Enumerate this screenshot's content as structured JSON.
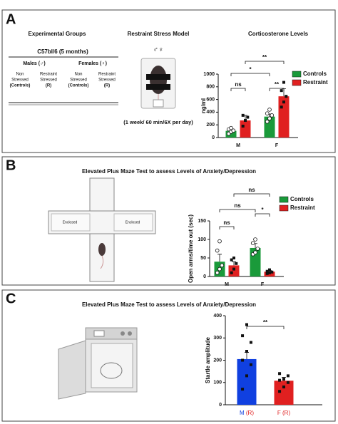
{
  "panels": [
    {
      "label": "A",
      "groups_table": {
        "title": "Experimental Groups",
        "strain": "C57bl/6 (5 months)",
        "sexes": [
          "Males (♂)",
          "Females (♀)"
        ],
        "columns": [
          [
            "Non",
            "Stressed",
            "(Controls)"
          ],
          [
            "Restraint",
            "Stressed",
            "(R)"
          ],
          [
            "Non",
            "Stressed",
            "(Controls)"
          ],
          [
            "Restraint",
            "Stressed",
            "(R)"
          ]
        ]
      },
      "model": {
        "title": "Restraint Stress Model",
        "symbols": "♂♀",
        "schedule": "(1 week/ 60 min/6X per day)"
      }
    },
    {
      "label": "B",
      "title": "Elevated Plus Maze Test to assess Levels of Anxiety/Depression",
      "maze_labels": [
        "Enclosed",
        "Enclosed"
      ]
    },
    {
      "label": "C",
      "title": "Elevated Plus Maze Test to assess Levels of Anxiety/Depression"
    }
  ],
  "chart_data": [
    {
      "type": "bar",
      "title": "Corticosterone Levels",
      "y_label": "ng/ml",
      "categories": [
        "M",
        "F"
      ],
      "ylim": [
        0,
        1000
      ],
      "yticks": [
        0,
        200,
        400,
        600,
        800,
        1000
      ],
      "series": [
        {
          "name": "Controls",
          "color": "#1a9a3a",
          "marker": "circle-open",
          "values": [
            105,
            330
          ],
          "errors": [
            20,
            40
          ],
          "points": [
            [
              60,
              90,
              110,
              130,
              150
            ],
            [
              250,
              300,
              350,
              380,
              440
            ]
          ]
        },
        {
          "name": "Restraint",
          "color": "#e02020",
          "marker": "square",
          "values": [
            270,
            650
          ],
          "errors": [
            80,
            120
          ],
          "points": [
            [
              180,
              270,
              320,
              350
            ],
            [
              480,
              560,
              650,
              740,
              870
            ]
          ]
        }
      ],
      "annotations": [
        "ns",
        "**",
        "*",
        "**"
      ]
    },
    {
      "type": "bar",
      "y_label": "Open arms/time out (sec)",
      "categories": [
        "M",
        "F"
      ],
      "ylim": [
        0,
        150
      ],
      "yticks": [
        0,
        50,
        100,
        150
      ],
      "series": [
        {
          "name": "Controls",
          "color": "#1a9a3a",
          "marker": "circle-open",
          "values": [
            40,
            77
          ],
          "errors": [
            20,
            12
          ],
          "points": [
            [
              10,
              20,
              30,
              70,
              95
            ],
            [
              60,
              65,
              75,
              90,
              100
            ]
          ]
        },
        {
          "name": "Restraint",
          "color": "#e02020",
          "marker": "square",
          "values": [
            30,
            13
          ],
          "errors": [
            10,
            3
          ],
          "points": [
            [
              10,
              20,
              35,
              45,
              50
            ],
            [
              8,
              10,
              12,
              14,
              18
            ]
          ]
        }
      ],
      "annotations": [
        "ns",
        "*",
        "ns",
        "ns"
      ]
    },
    {
      "type": "bar",
      "y_label": "Startle amplitude",
      "categories": [
        {
          "sex": "M",
          "group": "(R)"
        },
        {
          "sex": "F",
          "group": "(R)"
        }
      ],
      "sex_colors": [
        "#1040e0",
        "#e02020"
      ],
      "group_color": "#e02020",
      "ylim": [
        0,
        400
      ],
      "yticks": [
        0,
        100,
        200,
        300,
        400
      ],
      "series": [
        {
          "colors": [
            "#1040e0",
            "#e02020"
          ],
          "marker": "square",
          "values": [
            205,
            108
          ],
          "errors": [
            30,
            15
          ],
          "points": [
            [
              70,
              130,
              180,
              200,
              240,
              280,
              310,
              360
            ],
            [
              60,
              80,
              100,
              110,
              115,
              130,
              140
            ]
          ]
        }
      ],
      "annotations": [
        "**"
      ]
    }
  ]
}
